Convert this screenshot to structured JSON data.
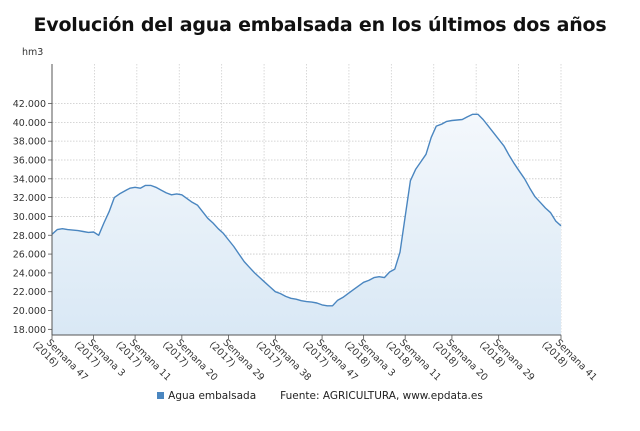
{
  "chart_data": {
    "type": "area",
    "title": "Evolución del agua embalsada en los últimos dos años",
    "ylabel": "hm3",
    "xlabel": "",
    "ylim": [
      17400,
      46200
    ],
    "yticks": [
      "18.000",
      "20.000",
      "22.000",
      "24.000",
      "26.000",
      "28.000",
      "30.000",
      "32.000",
      "34.000",
      "36.000",
      "38.000",
      "40.000",
      "42.000"
    ],
    "ytick_values": [
      18000,
      20000,
      22000,
      24000,
      26000,
      28000,
      30000,
      32000,
      34000,
      36000,
      38000,
      40000,
      42000
    ],
    "grid": true,
    "legend_position": "bottom",
    "xtick_labels": [
      "Semana 47 (2016)",
      "Semana 3 (2017)",
      "Semana 11 (2017)",
      "Semana 20 (2017)",
      "Semana 29 (2017)",
      "Semana 38 (2017)",
      "Semana 47 (2017)",
      "Semana 3 (2018)",
      "Semana 11 (2018)",
      "Semana 20 (2018)",
      "Semana 29 (2018)",
      "Semana 41 (2018)"
    ],
    "x": [
      "Semana 47 (2016)",
      "Semana 48 (2016)",
      "Semana 49 (2016)",
      "Semana 50 (2016)",
      "Semana 51 (2016)",
      "Semana 52 (2016)",
      "Semana 1 (2017)",
      "Semana 2 (2017)",
      "Semana 3 (2017)",
      "Semana 4 (2017)",
      "Semana 5 (2017)",
      "Semana 6 (2017)",
      "Semana 7 (2017)",
      "Semana 8 (2017)",
      "Semana 9 (2017)",
      "Semana 10 (2017)",
      "Semana 11 (2017)",
      "Semana 12 (2017)",
      "Semana 13 (2017)",
      "Semana 14 (2017)",
      "Semana 15 (2017)",
      "Semana 16 (2017)",
      "Semana 17 (2017)",
      "Semana 18 (2017)",
      "Semana 19 (2017)",
      "Semana 20 (2017)",
      "Semana 21 (2017)",
      "Semana 22 (2017)",
      "Semana 23 (2017)",
      "Semana 24 (2017)",
      "Semana 25 (2017)",
      "Semana 26 (2017)",
      "Semana 27 (2017)",
      "Semana 28 (2017)",
      "Semana 29 (2017)",
      "Semana 30 (2017)",
      "Semana 31 (2017)",
      "Semana 32 (2017)",
      "Semana 33 (2017)",
      "Semana 34 (2017)",
      "Semana 35 (2017)",
      "Semana 36 (2017)",
      "Semana 37 (2017)",
      "Semana 38 (2017)",
      "Semana 39 (2017)",
      "Semana 40 (2017)",
      "Semana 41 (2017)",
      "Semana 42 (2017)",
      "Semana 43 (2017)",
      "Semana 44 (2017)",
      "Semana 45 (2017)",
      "Semana 46 (2017)",
      "Semana 47 (2017)",
      "Semana 48 (2017)",
      "Semana 49 (2017)",
      "Semana 50 (2017)",
      "Semana 51 (2017)",
      "Semana 52 (2017)",
      "Semana 1 (2018)",
      "Semana 2 (2018)",
      "Semana 3 (2018)",
      "Semana 4 (2018)",
      "Semana 5 (2018)",
      "Semana 6 (2018)",
      "Semana 7 (2018)",
      "Semana 8 (2018)",
      "Semana 9 (2018)",
      "Semana 10 (2018)",
      "Semana 11 (2018)",
      "Semana 12 (2018)",
      "Semana 13 (2018)",
      "Semana 14 (2018)",
      "Semana 15 (2018)",
      "Semana 16 (2018)",
      "Semana 17 (2018)",
      "Semana 18 (2018)",
      "Semana 19 (2018)",
      "Semana 20 (2018)",
      "Semana 21 (2018)",
      "Semana 22 (2018)",
      "Semana 23 (2018)",
      "Semana 24 (2018)",
      "Semana 25 (2018)",
      "Semana 26 (2018)",
      "Semana 27 (2018)",
      "Semana 28 (2018)",
      "Semana 29 (2018)",
      "Semana 30 (2018)",
      "Semana 31 (2018)",
      "Semana 32 (2018)",
      "Semana 33 (2018)",
      "Semana 34 (2018)",
      "Semana 35 (2018)",
      "Semana 36 (2018)",
      "Semana 37 (2018)",
      "Semana 38 (2018)",
      "Semana 39 (2018)",
      "Semana 40 (2018)",
      "Semana 41 (2018)"
    ],
    "series": [
      {
        "name": "Agua embalsada",
        "color": "#4a86c0",
        "values": [
          28100,
          28600,
          28700,
          28600,
          28550,
          28500,
          28400,
          28300,
          28350,
          28000,
          29300,
          30500,
          32000,
          32400,
          32700,
          33000,
          33100,
          33000,
          33300,
          33300,
          33100,
          32800,
          32500,
          32300,
          32400,
          32300,
          31900,
          31500,
          31200,
          30500,
          29800,
          29300,
          28700,
          28200,
          27500,
          26800,
          26000,
          25200,
          24600,
          24000,
          23500,
          23000,
          22500,
          22000,
          21800,
          21500,
          21300,
          21200,
          21050,
          20950,
          20900,
          20800,
          20600,
          20500,
          20500,
          21100,
          21400,
          21800,
          22200,
          22600,
          23000,
          23200,
          23500,
          23600,
          23500,
          24100,
          24400,
          26200,
          30000,
          33800,
          35000,
          35800,
          36600,
          38400,
          39600,
          39800,
          40100,
          40200,
          40250,
          40300,
          40600,
          40850,
          40850,
          40300,
          39600,
          38900,
          38200,
          37500,
          36500,
          35600,
          34800,
          34000,
          33000,
          32100,
          31500,
          30900,
          30400,
          29500,
          29000
        ]
      }
    ],
    "source": "Fuente: AGRICULTURA, www.epdata.es"
  }
}
